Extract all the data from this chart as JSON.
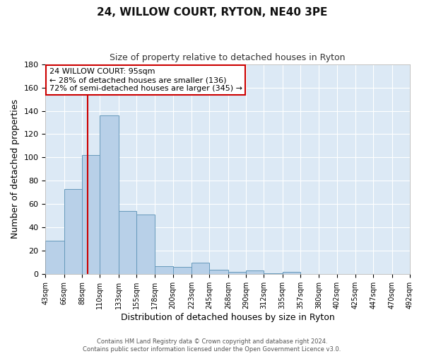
{
  "title": "24, WILLOW COURT, RYTON, NE40 3PE",
  "subtitle": "Size of property relative to detached houses in Ryton",
  "xlabel": "Distribution of detached houses by size in Ryton",
  "ylabel": "Number of detached properties",
  "bar_values": [
    29,
    73,
    102,
    136,
    54,
    51,
    7,
    6,
    10,
    4,
    2,
    3,
    1,
    2,
    0,
    0,
    0,
    0,
    0,
    0
  ],
  "bin_labels": [
    "43sqm",
    "66sqm",
    "88sqm",
    "110sqm",
    "133sqm",
    "155sqm",
    "178sqm",
    "200sqm",
    "223sqm",
    "245sqm",
    "268sqm",
    "290sqm",
    "312sqm",
    "335sqm",
    "357sqm",
    "380sqm",
    "402sqm",
    "425sqm",
    "447sqm",
    "470sqm",
    "492sqm"
  ],
  "bin_edges": [
    43,
    66,
    88,
    110,
    133,
    155,
    178,
    200,
    223,
    245,
    268,
    290,
    312,
    335,
    357,
    380,
    402,
    425,
    447,
    470,
    492
  ],
  "bar_color": "#b8d0e8",
  "bar_edge_color": "#6699bb",
  "vline_x": 95,
  "vline_color": "#cc0000",
  "ylim": [
    0,
    180
  ],
  "yticks": [
    0,
    20,
    40,
    60,
    80,
    100,
    120,
    140,
    160,
    180
  ],
  "annotation_title": "24 WILLOW COURT: 95sqm",
  "annotation_line1": "← 28% of detached houses are smaller (136)",
  "annotation_line2": "72% of semi-detached houses are larger (345) →",
  "annotation_box_color": "#ffffff",
  "annotation_box_edge": "#cc0000",
  "footer_line1": "Contains HM Land Registry data © Crown copyright and database right 2024.",
  "footer_line2": "Contains public sector information licensed under the Open Government Licence v3.0.",
  "background_color": "#ffffff",
  "plot_bg_color": "#dce9f5",
  "grid_color": "#ffffff"
}
